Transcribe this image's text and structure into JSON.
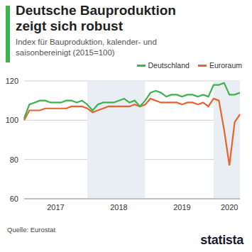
{
  "chart_data": {
    "type": "line",
    "title": "Deutsche Bauproduktion zeigt sich robust",
    "subtitle": "Index für Bauproduktion, kalender- und saisonbereinigt (2015=100)",
    "source": "Quelle: Eurostat",
    "brand": "statista",
    "categories": [
      null,
      null,
      null,
      null,
      null,
      null,
      "2017",
      null,
      null,
      null,
      null,
      null,
      null,
      null,
      null,
      null,
      null,
      null,
      "2018",
      null,
      null,
      null,
      null,
      null,
      null,
      null,
      null,
      null,
      null,
      null,
      "2019",
      null,
      null,
      null,
      null,
      null,
      null,
      null,
      null,
      "2020",
      null,
      null
    ],
    "series": [
      {
        "name": "Deutschland",
        "color": "#3cb44b",
        "values": [
          101,
          108,
          109,
          110,
          110,
          109,
          109,
          109,
          110,
          110,
          109,
          110,
          108,
          105,
          108,
          109,
          109,
          109,
          110,
          111,
          109,
          110,
          107,
          110,
          114,
          115,
          114,
          112,
          113,
          113,
          112,
          113,
          113,
          112,
          113,
          112,
          118,
          118,
          119,
          113,
          113,
          114
        ]
      },
      {
        "name": "Euroraum",
        "color": "#e8622c",
        "values": [
          100,
          105,
          105,
          105,
          106,
          106,
          106,
          106,
          106,
          107,
          107,
          107,
          106,
          104,
          105,
          106,
          107,
          107,
          107,
          107,
          107,
          108,
          107,
          108,
          111,
          110,
          109,
          109,
          109,
          109,
          108,
          109,
          109,
          108,
          109,
          107,
          111,
          110,
          95,
          77,
          99,
          103
        ]
      }
    ],
    "ylim": [
      60,
      120
    ],
    "yticks": [
      60,
      80,
      100,
      120
    ],
    "grid": true,
    "legend": "top-right"
  }
}
